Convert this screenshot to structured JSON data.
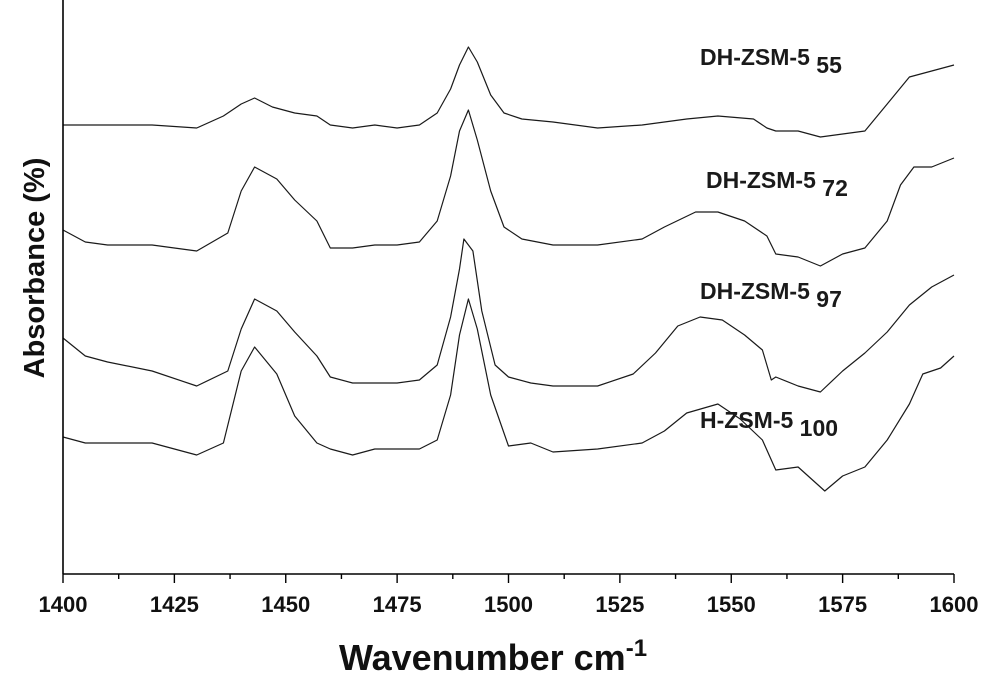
{
  "chart_data": {
    "type": "line",
    "xlabel": "Wavenumber cm",
    "xlabel_superscript": "-1",
    "ylabel": "Absorbance (%)",
    "xlim": [
      1400,
      1600
    ],
    "xticks": [
      1400,
      1425,
      1450,
      1475,
      1500,
      1525,
      1550,
      1575,
      1600
    ],
    "grid": false,
    "legend": "none",
    "y_units": "stacked spectra, arbitrary",
    "series": [
      {
        "name": "DH-ZSM-5",
        "subscript": "55",
        "x": [
          1400,
          1410,
          1420,
          1430,
          1436,
          1440,
          1443,
          1447,
          1452,
          1457,
          1460,
          1465,
          1470,
          1475,
          1480,
          1484,
          1487,
          1489,
          1491,
          1493,
          1496,
          1499,
          1503,
          1510,
          1520,
          1530,
          1540,
          1547,
          1555,
          1558,
          1560,
          1565,
          1570,
          1575,
          1580,
          1585,
          1590,
          1595,
          1600
        ],
        "y": [
          1.2,
          1.2,
          1.2,
          1.19,
          1.23,
          1.27,
          1.29,
          1.26,
          1.24,
          1.23,
          1.2,
          1.19,
          1.2,
          1.19,
          1.2,
          1.24,
          1.32,
          1.4,
          1.46,
          1.41,
          1.3,
          1.24,
          1.22,
          1.21,
          1.19,
          1.2,
          1.22,
          1.23,
          1.22,
          1.19,
          1.18,
          1.18,
          1.16,
          1.17,
          1.18,
          1.27,
          1.36,
          1.38,
          1.4
        ]
      },
      {
        "name": "DH-ZSM-5",
        "subscript": "72",
        "x": [
          1400,
          1405,
          1410,
          1420,
          1430,
          1437,
          1440,
          1443,
          1448,
          1452,
          1457,
          1460,
          1465,
          1470,
          1475,
          1480,
          1484,
          1487,
          1489,
          1491,
          1493,
          1496,
          1499,
          1503,
          1510,
          1520,
          1530,
          1535,
          1542,
          1547,
          1553,
          1558,
          1560,
          1565,
          1570,
          1575,
          1580,
          1585,
          1588,
          1591,
          1595,
          1600
        ],
        "y": [
          0.85,
          0.81,
          0.8,
          0.8,
          0.78,
          0.84,
          0.98,
          1.06,
          1.02,
          0.95,
          0.88,
          0.79,
          0.79,
          0.8,
          0.8,
          0.81,
          0.88,
          1.03,
          1.18,
          1.25,
          1.15,
          0.98,
          0.86,
          0.82,
          0.8,
          0.8,
          0.82,
          0.86,
          0.91,
          0.91,
          0.88,
          0.83,
          0.77,
          0.76,
          0.73,
          0.77,
          0.79,
          0.88,
          1.0,
          1.06,
          1.06,
          1.09
        ]
      },
      {
        "name": "DH-ZSM-5",
        "subscript": "97",
        "x": [
          1400,
          1405,
          1410,
          1420,
          1430,
          1437,
          1440,
          1443,
          1448,
          1452,
          1457,
          1460,
          1465,
          1470,
          1475,
          1480,
          1484,
          1487,
          1489,
          1490,
          1492,
          1494,
          1497,
          1500,
          1505,
          1510,
          1520,
          1528,
          1533,
          1538,
          1543,
          1548,
          1553,
          1557,
          1559,
          1560,
          1565,
          1570,
          1575,
          1580,
          1585,
          1590,
          1595,
          1600
        ],
        "y": [
          0.49,
          0.43,
          0.41,
          0.38,
          0.33,
          0.38,
          0.52,
          0.62,
          0.58,
          0.51,
          0.43,
          0.36,
          0.34,
          0.34,
          0.34,
          0.35,
          0.4,
          0.56,
          0.72,
          0.82,
          0.78,
          0.58,
          0.4,
          0.36,
          0.34,
          0.33,
          0.33,
          0.37,
          0.44,
          0.53,
          0.56,
          0.55,
          0.5,
          0.45,
          0.35,
          0.36,
          0.33,
          0.31,
          0.38,
          0.44,
          0.51,
          0.6,
          0.66,
          0.7
        ]
      },
      {
        "name": "H-ZSM-5",
        "subscript": "100",
        "x": [
          1400,
          1405,
          1410,
          1420,
          1430,
          1436,
          1440,
          1443,
          1448,
          1452,
          1457,
          1460,
          1465,
          1470,
          1475,
          1480,
          1484,
          1487,
          1489,
          1491,
          1493,
          1496,
          1500,
          1505,
          1510,
          1520,
          1530,
          1535,
          1540,
          1547,
          1552,
          1557,
          1560,
          1565,
          1571,
          1575,
          1580,
          1585,
          1590,
          1593,
          1597,
          1600
        ],
        "y": [
          0.16,
          0.14,
          0.14,
          0.14,
          0.1,
          0.14,
          0.38,
          0.46,
          0.37,
          0.23,
          0.14,
          0.12,
          0.1,
          0.12,
          0.12,
          0.12,
          0.15,
          0.3,
          0.5,
          0.62,
          0.52,
          0.3,
          0.13,
          0.14,
          0.11,
          0.12,
          0.14,
          0.18,
          0.24,
          0.27,
          0.22,
          0.15,
          0.05,
          0.06,
          -0.02,
          0.03,
          0.06,
          0.15,
          0.27,
          0.37,
          0.39,
          0.43
        ]
      }
    ]
  }
}
